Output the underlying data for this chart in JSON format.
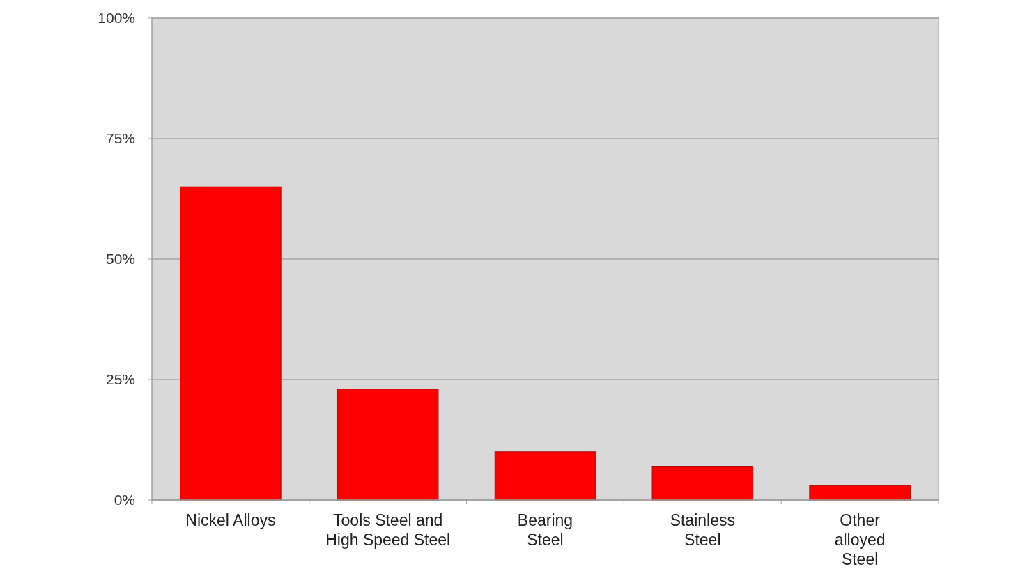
{
  "chart_data": {
    "type": "bar",
    "categories": [
      "Nickel Alloys",
      "Tools Steel and\nHigh Speed Steel",
      "Bearing\nSteel",
      "Stainless\nSteel",
      "Other\nalloyed\nSteel"
    ],
    "values": [
      65,
      23,
      10,
      7,
      3
    ],
    "color": "#ff0000",
    "ylim": [
      0,
      100
    ],
    "yticks": [
      {
        "value": 0,
        "label": "0%"
      },
      {
        "value": 25,
        "label": "25%"
      },
      {
        "value": 50,
        "label": "50%"
      },
      {
        "value": 75,
        "label": "75%"
      },
      {
        "value": 100,
        "label": "100%"
      }
    ],
    "grid": "y"
  }
}
